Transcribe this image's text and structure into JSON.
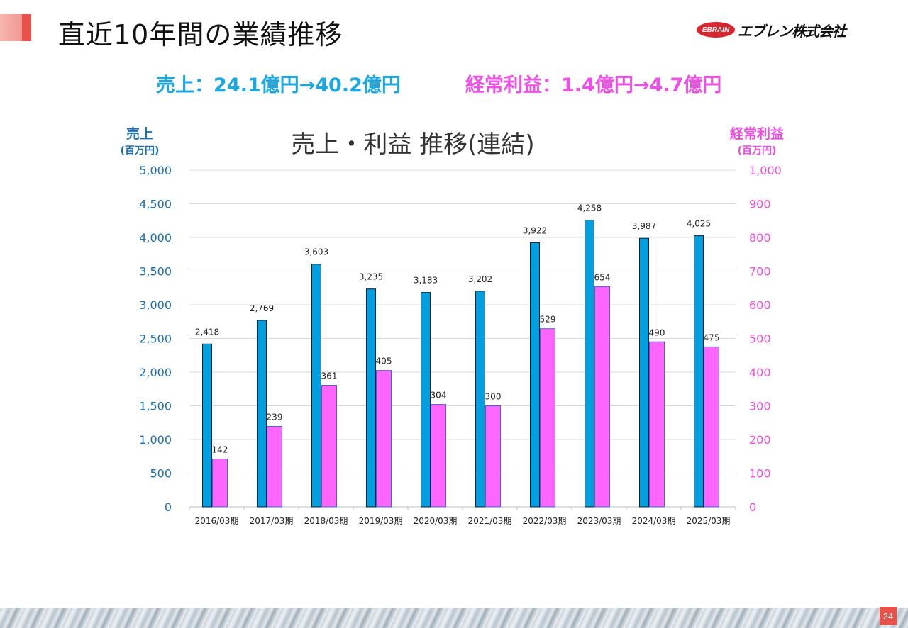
{
  "header": {
    "title": "直近10年間の業績推移",
    "logo_mark": "EBRAIN",
    "logo_text": "エブレン株式会社"
  },
  "summary": {
    "sales": "売上：24.1億円→40.2億円",
    "profit": "経常利益：1.4億円→4.7億円"
  },
  "colors": {
    "sales": "#00a0e0",
    "profit": "#ff66ff",
    "sales_text": "#1aa8e0",
    "profit_text": "#ef4fe6",
    "left_axis": "#1b6fb0",
    "right_axis": "#f04de0",
    "accent": "#e8524a"
  },
  "chart_data": {
    "type": "bar",
    "title": "売上・利益 推移(連結)",
    "left_axis_label": "売上",
    "left_axis_unit": "(百万円)",
    "right_axis_label": "経常利益",
    "right_axis_unit": "(百万円)",
    "categories": [
      "2016/03期",
      "2017/03期",
      "2018/03期",
      "2019/03期",
      "2020/03期",
      "2021/03期",
      "2022/03期",
      "2023/03期",
      "2024/03期",
      "2025/03期"
    ],
    "series": [
      {
        "name": "売上",
        "axis": "left",
        "values": [
          2418,
          2769,
          3603,
          3235,
          3183,
          3202,
          3922,
          4258,
          3987,
          4025
        ],
        "labels": [
          "2,418",
          "2,769",
          "3,603",
          "3,235",
          "3,183",
          "3,202",
          "3,922",
          "4,258",
          "3,987",
          "4,025"
        ]
      },
      {
        "name": "経常利益",
        "axis": "right",
        "values": [
          142,
          239,
          361,
          405,
          304,
          300,
          529,
          654,
          490,
          475
        ],
        "labels": [
          "142",
          "239",
          "361",
          "405",
          "304",
          "300",
          "529",
          "654",
          "490",
          "475"
        ]
      }
    ],
    "ylim_left": [
      0,
      5000
    ],
    "ylim_right": [
      0,
      1000
    ],
    "left_ticks": [
      "0",
      "500",
      "1,000",
      "1,500",
      "2,000",
      "2,500",
      "3,000",
      "3,500",
      "4,000",
      "4,500",
      "5,000"
    ],
    "right_ticks": [
      "0",
      "100",
      "200",
      "300",
      "400",
      "500",
      "600",
      "700",
      "800",
      "900",
      "1,000"
    ],
    "grid": true,
    "legend": "none"
  },
  "page_number": "24"
}
